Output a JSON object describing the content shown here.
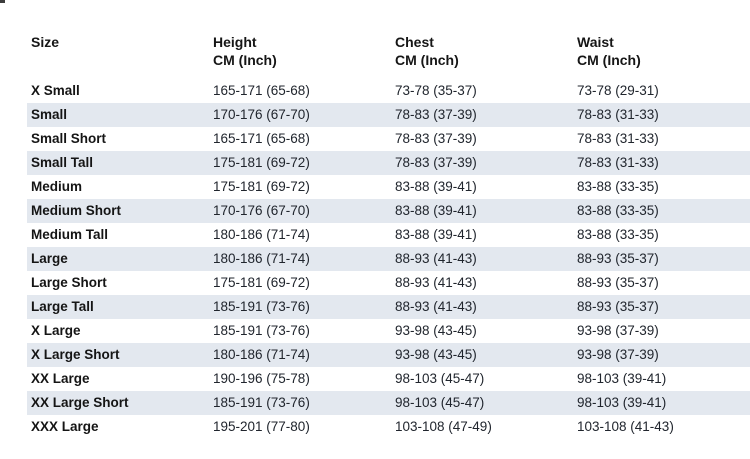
{
  "page": {
    "background": "#ffffff",
    "stripe_color": "#e3e8ef",
    "header_text_color": "#161616",
    "value_text_color": "#20252d"
  },
  "table": {
    "columns": [
      {
        "label": "Size",
        "sublabel": ""
      },
      {
        "label": "Height",
        "sublabel": "CM (Inch)"
      },
      {
        "label": "Chest",
        "sublabel": "CM (Inch)"
      },
      {
        "label": "Waist",
        "sublabel": "CM (Inch)"
      }
    ],
    "rows": [
      {
        "size": "X Small",
        "height": "165-171 (65-68)",
        "chest": "73-78 (35-37)",
        "waist": "73-78 (29-31)"
      },
      {
        "size": "Small",
        "height": "170-176 (67-70)",
        "chest": "78-83 (37-39)",
        "waist": "78-83 (31-33)"
      },
      {
        "size": "Small Short",
        "height": "165-171 (65-68)",
        "chest": "78-83 (37-39)",
        "waist": "78-83 (31-33)"
      },
      {
        "size": "Small Tall",
        "height": "175-181 (69-72)",
        "chest": "78-83 (37-39)",
        "waist": "78-83 (31-33)"
      },
      {
        "size": "Medium",
        "height": "175-181 (69-72)",
        "chest": "83-88 (39-41)",
        "waist": "83-88 (33-35)"
      },
      {
        "size": "Medium Short",
        "height": "170-176 (67-70)",
        "chest": "83-88 (39-41)",
        "waist": "83-88 (33-35)"
      },
      {
        "size": "Medium Tall",
        "height": "180-186 (71-74)",
        "chest": "83-88 (39-41)",
        "waist": "83-88 (33-35)"
      },
      {
        "size": "Large",
        "height": "180-186 (71-74)",
        "chest": "88-93 (41-43)",
        "waist": "88-93 (35-37)"
      },
      {
        "size": "Large Short",
        "height": "175-181 (69-72)",
        "chest": "88-93 (41-43)",
        "waist": "88-93 (35-37)"
      },
      {
        "size": "Large Tall",
        "height": "185-191 (73-76)",
        "chest": "88-93 (41-43)",
        "waist": "88-93 (35-37)"
      },
      {
        "size": "X Large",
        "height": "185-191 (73-76)",
        "chest": "93-98 (43-45)",
        "waist": "93-98 (37-39)"
      },
      {
        "size": "X Large Short",
        "height": "180-186 (71-74)",
        "chest": "93-98 (43-45)",
        "waist": "93-98 (37-39)"
      },
      {
        "size": "XX Large",
        "height": "190-196 (75-78)",
        "chest": "98-103 (45-47)",
        "waist": "98-103 (39-41)"
      },
      {
        "size": "XX Large Short",
        "height": "185-191 (73-76)",
        "chest": "98-103 (45-47)",
        "waist": "98-103 (39-41)"
      },
      {
        "size": "XXX Large",
        "height": "195-201 (77-80)",
        "chest": "103-108 (47-49)",
        "waist": "103-108 (41-43)"
      }
    ]
  }
}
